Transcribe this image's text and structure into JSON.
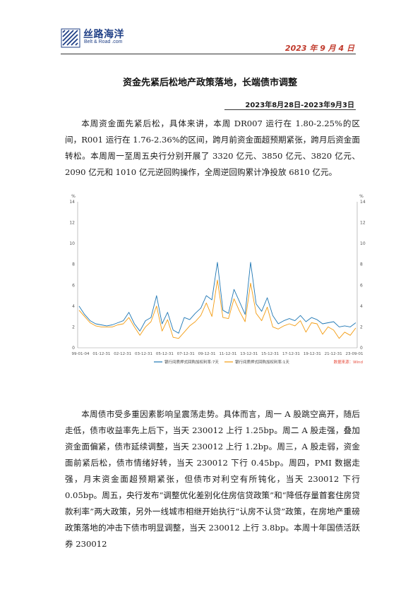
{
  "header": {
    "logo_cn": "丝路海洋",
    "logo_en": "Belt & Road .com",
    "date": "2023 年 9 月 4 日"
  },
  "title": "资金先紧后松地产政策落地，长端债市调整",
  "date_range": "2023年8月28日-2023年9月3日",
  "paragraphs": {
    "p1": "本周资金面先紧后松，具体来讲，本周 DR007 运行在 1.80-2.25%的区间，R001 运行在 1.76-2.36%的区间，跨月前资金面超预期紧张，跨月后资金面转松。本周周一至周五央行分别开展了 3320 亿元、3850 亿元、3820 亿元、2090 亿元和 1010 亿元逆回购操作，全周逆回购累计净投放 6810 亿元。",
    "p2": "本周债市受多重因素影响呈震荡走势。具体而言，周一 A 股跳空高开，随后走低，债市收益率先上后下，当天 230012 上行 1.25bp。周二 A 股走强，叠加资金面偏紧，债市延续调整，当天 230012 上行 1.2bp。周三，A 股走弱，资金面前紧后松，债市情绪好转，当天 230012 下行 0.45bp。周四，PMI 数据走强，月末资金面超预期紧张，但债市对利空有所钝化，当天 230012 下行 0.05bp。周五，央行发布“调整优化差别化住房信贷政策”和“降低存量首套住房贷款利率”两大政策，另外一线城市相继开始执行“认房不认贷”政策，在房地产重磅政策落地的冲击下债市明显调整，当天 230012 上行 3.8bp。本周十年国债活跃券 230012"
  },
  "chart_data": {
    "type": "line",
    "ylabel_left": "%",
    "ylabel_right": "%",
    "ylim": [
      0,
      14
    ],
    "yticks": [
      "0",
      "2",
      "4",
      "6",
      "8",
      "10",
      "12",
      "14"
    ],
    "x_ticks": [
      "99-01-04",
      "01-12-31",
      "02-12-31",
      "03-12-31",
      "05-12-31",
      "07-12-31",
      "09-12-31",
      "11-12-31",
      "13-12-31",
      "15-12-31",
      "17-12-31",
      "19-12-31",
      "21-12-31",
      "23-09-01"
    ],
    "legend": [
      "银行间质押式回购加权利率:7天",
      "银行间质押式回购加权利率:1天"
    ],
    "source": "数据来源：Wind",
    "colors": {
      "s7": "#1f77b4",
      "s1": "#f39c12",
      "source": "#e74c3c"
    },
    "grid": false,
    "series": [
      {
        "name": "银行间质押式回购加权利率:7天",
        "values": [
          4.0,
          3.2,
          2.6,
          2.3,
          2.2,
          2.1,
          2.2,
          2.4,
          2.6,
          3.4,
          2.3,
          1.6,
          2.6,
          2.9,
          5.0,
          2.3,
          3.4,
          1.7,
          1.4,
          2.9,
          2.7,
          3.3,
          3.8,
          5.0,
          4.6,
          8.2,
          3.6,
          3.3,
          5.6,
          4.4,
          3.2,
          8.2,
          4.2,
          3.5,
          4.8,
          3.1,
          2.3,
          2.6,
          2.8,
          2.6,
          3.1,
          2.5,
          2.9,
          2.7,
          2.3,
          2.4,
          2.5,
          2.0,
          2.1,
          2.0,
          2.4
        ]
      },
      {
        "name": "银行间质押式回购加权利率:1天",
        "values": [
          3.6,
          3.0,
          2.4,
          2.1,
          2.0,
          2.0,
          2.0,
          2.2,
          2.3,
          2.9,
          2.0,
          1.2,
          2.0,
          2.5,
          4.0,
          1.6,
          2.7,
          1.0,
          0.9,
          1.5,
          2.1,
          2.5,
          3.1,
          4.3,
          3.0,
          6.5,
          2.9,
          2.8,
          4.7,
          3.5,
          2.5,
          6.2,
          3.3,
          2.6,
          3.9,
          2.0,
          1.8,
          2.1,
          2.3,
          2.1,
          2.6,
          1.5,
          2.4,
          2.3,
          1.3,
          2.0,
          1.7,
          0.9,
          1.5,
          1.2,
          1.9
        ]
      }
    ]
  }
}
